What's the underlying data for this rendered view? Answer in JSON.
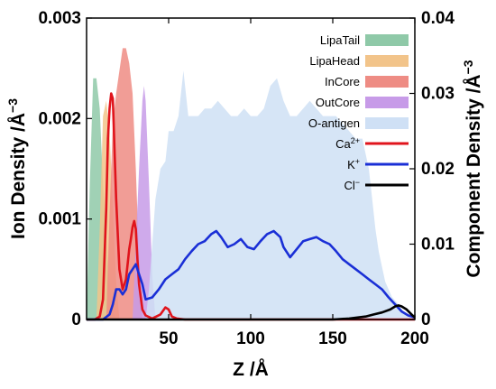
{
  "chart_data": {
    "type": "area",
    "xlabel": "Z /Å",
    "ylabel_left": "Ion Density /Å",
    "ylabel_left_sup": "−3",
    "ylabel_right": "Component Density /Å",
    "ylabel_right_sup": "−3",
    "xlim": [
      0,
      200
    ],
    "ylim_left": [
      0,
      0.003
    ],
    "ylim_right": [
      0,
      0.04
    ],
    "x_ticks": [
      "50",
      "100",
      "150",
      "200"
    ],
    "x_tick_values": [
      50,
      100,
      150,
      200
    ],
    "y_left_ticks": [
      "0",
      "0.001",
      "0.002",
      "0.003"
    ],
    "y_left_tick_values": [
      0,
      0.001,
      0.002,
      0.003
    ],
    "y_right_ticks": [
      "0",
      "0.01",
      "0.02",
      "0.03",
      "0.04"
    ],
    "y_right_tick_values": [
      0,
      0.01,
      0.02,
      0.03,
      0.04
    ],
    "legend_position": "top-right",
    "component_series": [
      {
        "name": "LipaTail",
        "axis": "right",
        "color": "#8fc9a8",
        "x": [
          0,
          2,
          4,
          6,
          8,
          10,
          12,
          14,
          16,
          18
        ],
        "values": [
          0,
          0.018,
          0.032,
          0.032,
          0.028,
          0.018,
          0.01,
          0.005,
          0.001,
          0
        ]
      },
      {
        "name": "LipaHead",
        "axis": "right",
        "color": "#f2c48a",
        "x": [
          6,
          8,
          10,
          12,
          14,
          16,
          18,
          20
        ],
        "values": [
          0,
          0.012,
          0.027,
          0.029,
          0.025,
          0.015,
          0.005,
          0
        ]
      },
      {
        "name": "InCore",
        "axis": "right",
        "color": "#ee8c84",
        "x": [
          12,
          14,
          16,
          18,
          20,
          22,
          24,
          26,
          28,
          30,
          32,
          34
        ],
        "values": [
          0,
          0.014,
          0.026,
          0.03,
          0.033,
          0.036,
          0.036,
          0.034,
          0.03,
          0.02,
          0.008,
          0
        ]
      },
      {
        "name": "OutCore",
        "axis": "right",
        "color": "#c79be8",
        "x": [
          28,
          30,
          32,
          34,
          35,
          36,
          38,
          40,
          42
        ],
        "values": [
          0,
          0.01,
          0.02,
          0.029,
          0.031,
          0.029,
          0.018,
          0.006,
          0
        ]
      },
      {
        "name": "O-antigen",
        "axis": "right",
        "color": "#cfe0f5",
        "x": [
          36,
          38,
          40,
          42,
          45,
          48,
          50,
          53,
          56,
          59,
          62,
          65,
          68,
          72,
          76,
          80,
          84,
          88,
          92,
          96,
          100,
          104,
          108,
          112,
          116,
          120,
          124,
          128,
          132,
          136,
          140,
          144,
          148,
          152,
          156,
          160,
          164,
          168,
          172,
          174,
          176,
          178,
          180,
          182,
          184,
          186,
          190,
          195,
          200
        ],
        "values": [
          0,
          0.004,
          0.01,
          0.016,
          0.02,
          0.021,
          0.025,
          0.025,
          0.027,
          0.033,
          0.027,
          0.027,
          0.027,
          0.028,
          0.028,
          0.029,
          0.028,
          0.027,
          0.027,
          0.028,
          0.027,
          0.027,
          0.028,
          0.031,
          0.032,
          0.029,
          0.027,
          0.027,
          0.028,
          0.029,
          0.028,
          0.027,
          0.027,
          0.027,
          0.026,
          0.025,
          0.024,
          0.024,
          0.02,
          0.016,
          0.012,
          0.009,
          0.007,
          0.005,
          0.004,
          0.003,
          0.002,
          0.0005,
          0
        ]
      }
    ],
    "ion_series": [
      {
        "name": "Ca",
        "sup": "2+",
        "axis": "left",
        "color": "#e0141c",
        "x": [
          0,
          5,
          8,
          10,
          12,
          13,
          14,
          15,
          16,
          18,
          20,
          22,
          24,
          26,
          27,
          28,
          29,
          30,
          31,
          32,
          34,
          36,
          40,
          45,
          48,
          50,
          52,
          55,
          60,
          80,
          100,
          140,
          200
        ],
        "values": [
          0,
          0,
          3e-05,
          0.0002,
          0.0011,
          0.0018,
          0.0021,
          0.00225,
          0.0022,
          0.0012,
          0.0005,
          0.0003,
          0.0004,
          0.0007,
          0.0008,
          0.00092,
          0.00098,
          0.0009,
          0.0006,
          0.00035,
          0.0001,
          4e-05,
          1e-05,
          5e-05,
          0.00012,
          0.0001,
          3e-05,
          1e-05,
          0,
          0,
          0,
          0,
          0
        ]
      },
      {
        "name": "K",
        "sup": "+",
        "axis": "left",
        "color": "#1a2fd6",
        "x": [
          0,
          10,
          14,
          16,
          18,
          20,
          22,
          24,
          26,
          28,
          30,
          32,
          34,
          36,
          40,
          44,
          48,
          52,
          56,
          60,
          64,
          68,
          72,
          76,
          79,
          82,
          86,
          90,
          94,
          98,
          102,
          106,
          110,
          114,
          118,
          120,
          124,
          128,
          132,
          136,
          140,
          144,
          148,
          152,
          156,
          160,
          164,
          168,
          172,
          176,
          180,
          184,
          188,
          192,
          196,
          200
        ],
        "values": [
          0,
          0,
          5e-05,
          0.00015,
          0.0003,
          0.0003,
          0.00025,
          0.0003,
          0.00045,
          0.0005,
          0.00055,
          0.00045,
          0.00035,
          0.0002,
          0.00022,
          0.0003,
          0.0004,
          0.00045,
          0.0005,
          0.0006,
          0.00068,
          0.00075,
          0.00078,
          0.00085,
          0.00088,
          0.00082,
          0.00072,
          0.00075,
          0.0008,
          0.00072,
          0.0007,
          0.00078,
          0.00085,
          0.00088,
          0.00082,
          0.00072,
          0.00062,
          0.0007,
          0.00078,
          0.0008,
          0.00082,
          0.00078,
          0.00075,
          0.00068,
          0.0006,
          0.00055,
          0.0005,
          0.00045,
          0.0004,
          0.00035,
          0.0003,
          0.00022,
          0.00015,
          8e-05,
          4e-05,
          2e-05
        ]
      },
      {
        "name": "Cl",
        "sup": "−",
        "axis": "left",
        "color": "#000000",
        "x": [
          0,
          100,
          150,
          160,
          170,
          175,
          180,
          185,
          188,
          190,
          192,
          195,
          198,
          200
        ],
        "values": [
          0,
          0,
          0,
          1e-05,
          3e-05,
          5e-05,
          7e-05,
          0.0001,
          0.00013,
          0.00014,
          0.00013,
          0.0001,
          5e-05,
          2e-05
        ]
      }
    ]
  }
}
